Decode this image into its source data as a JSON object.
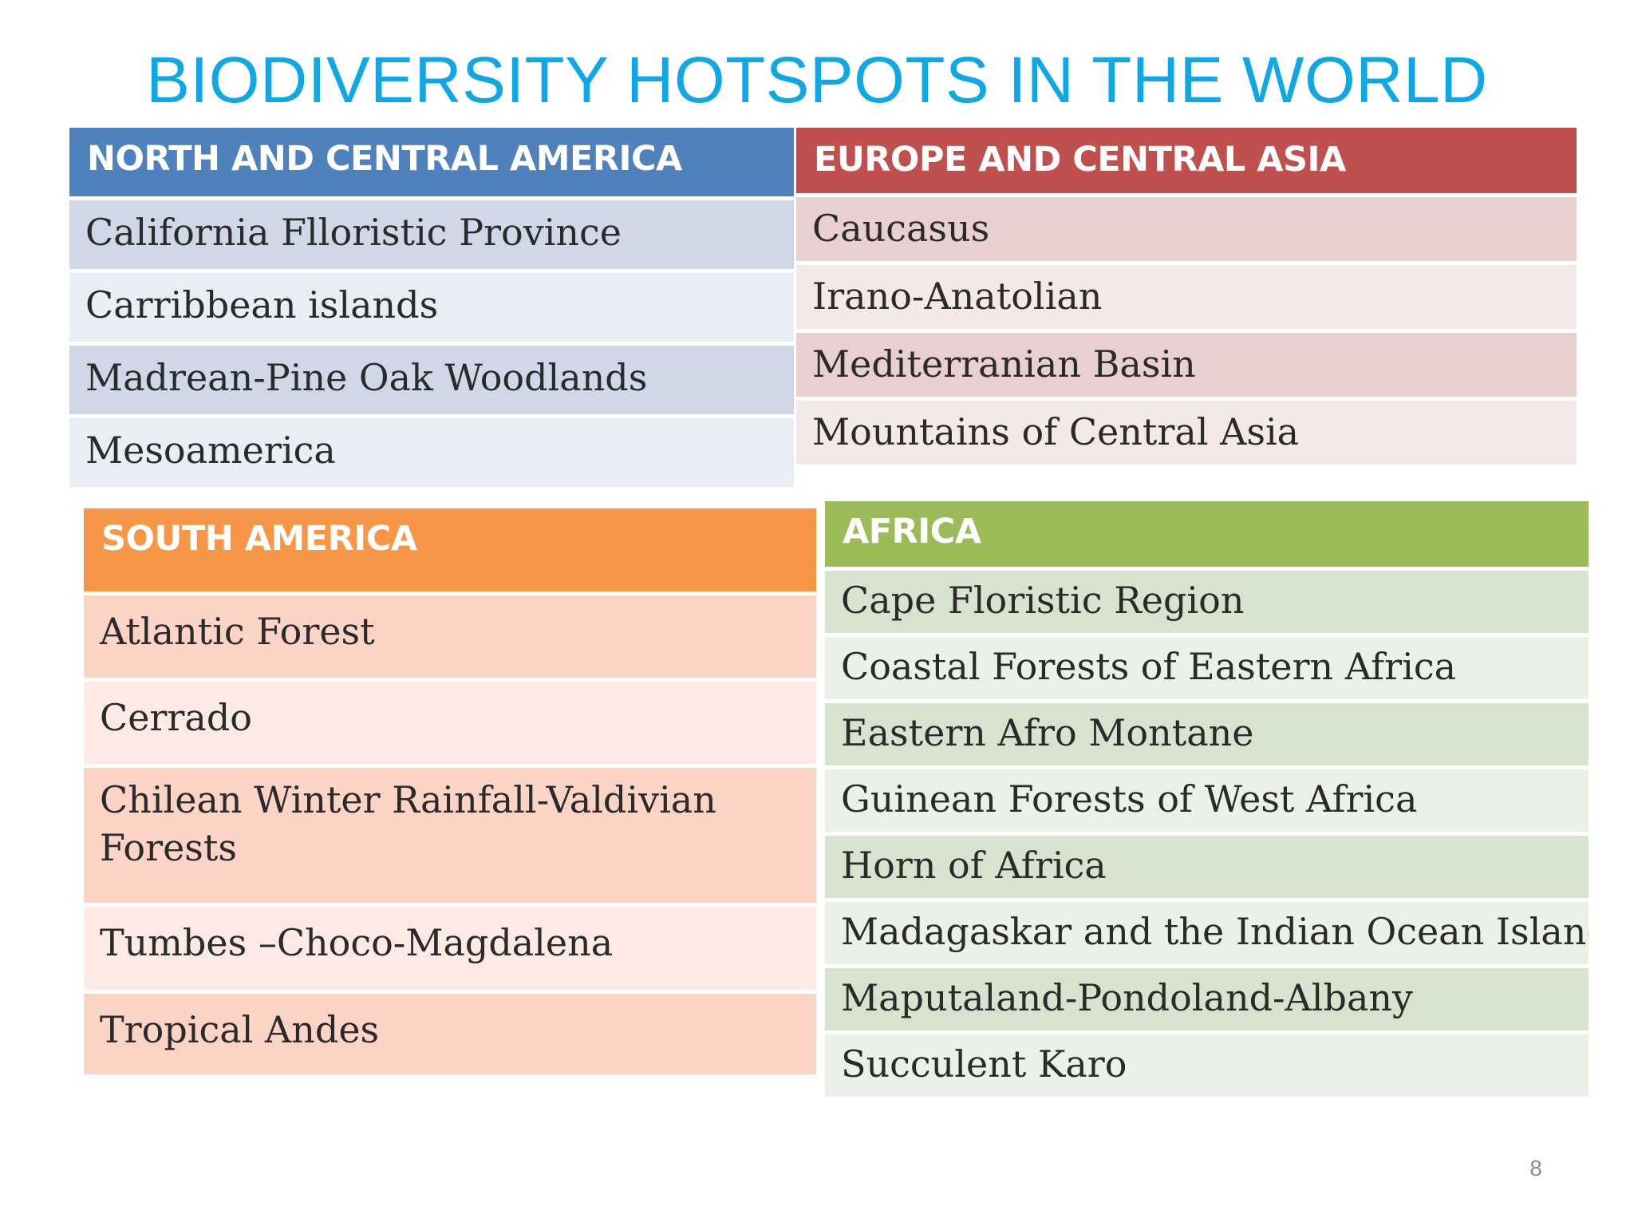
{
  "title": "BIODIVERSITY HOTSPOTS IN THE WORLD",
  "page_number": "8",
  "colors": {
    "title": "#0fa8e6",
    "north_central_america": "#4f81bd",
    "europe_central_asia": "#c0504d",
    "south_america": "#f79646",
    "africa": "#9bbb59"
  },
  "regions": {
    "north_central_america": {
      "header": "NORTH AND CENTRAL AMERICA",
      "items": [
        "California Flloristic Province",
        "Carribbean islands",
        "Madrean-Pine  Oak Woodlands",
        "Mesoamerica"
      ]
    },
    "europe_central_asia": {
      "header": "EUROPE AND CENTRAL ASIA",
      "items": [
        "Caucasus",
        "Irano-Anatolian",
        "Mediterranian Basin",
        "Mountains of Central Asia"
      ]
    },
    "south_america": {
      "header": "SOUTH AMERICA",
      "items": [
        "Atlantic Forest",
        "Cerrado",
        "Chilean Winter Rainfall-Valdivian Forests",
        "Tumbes –Choco-Magdalena",
        "Tropical Andes"
      ]
    },
    "africa": {
      "header": "AFRICA",
      "items": [
        "Cape Floristic Region",
        "Coastal Forests of Eastern Africa",
        "Eastern Afro Montane",
        "Guinean Forests of West Africa",
        "Horn of Africa",
        "Madagaskar and the Indian Ocean Islands",
        "Maputaland-Pondoland-Albany",
        "Succulent Karo"
      ]
    }
  }
}
